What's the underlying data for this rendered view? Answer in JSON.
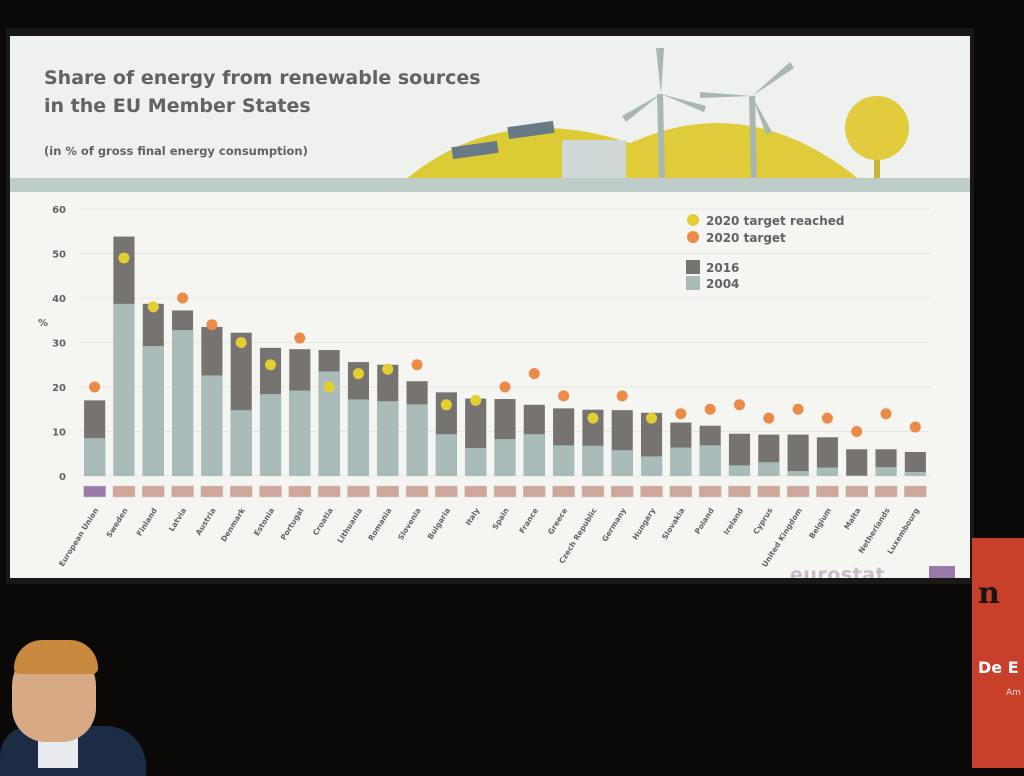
{
  "slide": {
    "title_lines": [
      "Share of energy from renewable sources",
      "in the EU Member States"
    ],
    "subtitle": "(in % of gross final energy consumption)",
    "logo": "eurostat"
  },
  "colors": {
    "bar_2016": "#777371",
    "bar_2004": "#a9bcb9",
    "target_reached": "#e3cf34",
    "target": "#ec8a48",
    "text": "#5f6463",
    "background": "#f5f5f2",
    "sign": "#c8402a"
  },
  "sign": {
    "top_text": "n",
    "mid_text": "De E",
    "small_text": "Am"
  },
  "chart_data": {
    "type": "bar",
    "title": "Share of energy from renewable sources in the EU Member States",
    "subtitle": "(in % of gross final energy consumption)",
    "ylabel": "%",
    "ylim": [
      0,
      60
    ],
    "yticks": [
      0,
      10,
      20,
      30,
      40,
      50,
      60
    ],
    "grid": true,
    "legend_position": "top-right",
    "legend": [
      {
        "label": "2020 target reached",
        "marker": "dot",
        "color": "#e3cf34"
      },
      {
        "label": "2020 target",
        "marker": "dot",
        "color": "#ec8a48"
      },
      {
        "label": "2016",
        "marker": "square",
        "color": "#777371"
      },
      {
        "label": "2004",
        "marker": "square",
        "color": "#a9bcb9"
      }
    ],
    "categories": [
      "European Union",
      "Sweden",
      "Finland",
      "Latvia",
      "Austria",
      "Denmark",
      "Estonia",
      "Portugal",
      "Croatia",
      "Lithuania",
      "Romania",
      "Slovenia",
      "Bulgaria",
      "Italy",
      "Spain",
      "France",
      "Greece",
      "Czech Republic",
      "Germany",
      "Hungary",
      "Slovakia",
      "Poland",
      "Ireland",
      "Cyprus",
      "United Kingdom",
      "Belgium",
      "Malta",
      "Netherlands",
      "Luxembourg"
    ],
    "series": [
      {
        "name": "2016",
        "values": [
          17.0,
          53.8,
          38.7,
          37.2,
          33.5,
          32.2,
          28.8,
          28.5,
          28.3,
          25.6,
          25.0,
          21.3,
          18.8,
          17.4,
          17.3,
          16.0,
          15.2,
          14.9,
          14.8,
          14.2,
          12.0,
          11.3,
          9.5,
          9.3,
          9.3,
          8.7,
          6.0,
          6.0,
          5.4
        ]
      },
      {
        "name": "2004",
        "values": [
          8.5,
          38.7,
          29.2,
          32.8,
          22.6,
          14.8,
          18.4,
          19.2,
          23.5,
          17.2,
          16.8,
          16.1,
          9.4,
          6.3,
          8.3,
          9.4,
          6.9,
          6.8,
          5.8,
          4.4,
          6.4,
          6.9,
          2.4,
          3.1,
          1.1,
          1.9,
          0.1,
          2.0,
          0.9
        ]
      },
      {
        "name": "2020 target",
        "values": [
          20,
          49,
          38,
          40,
          34,
          30,
          25,
          31,
          20,
          23,
          24,
          25,
          16,
          17,
          20,
          23,
          18,
          13,
          18,
          13,
          14,
          15,
          16,
          13,
          15,
          13,
          10,
          14,
          11
        ]
      }
    ],
    "target_reached": [
      false,
      true,
      true,
      false,
      false,
      true,
      true,
      false,
      true,
      true,
      true,
      false,
      true,
      true,
      false,
      false,
      false,
      true,
      false,
      true,
      false,
      false,
      false,
      false,
      false,
      false,
      false,
      false,
      false
    ]
  }
}
